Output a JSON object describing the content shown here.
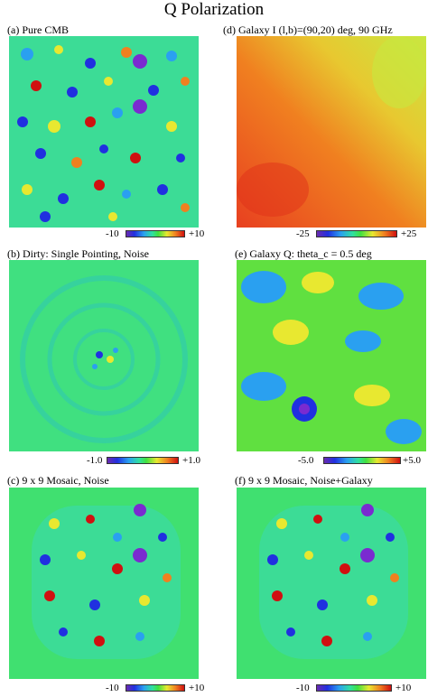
{
  "figure": {
    "title": "Q Polarization"
  },
  "panels": [
    {
      "id": "a",
      "label": "(a) Pure CMB",
      "cbar_min": "-10",
      "cbar_max": "+10"
    },
    {
      "id": "d",
      "label": "(d) Galaxy I (l,b)=(90,20) deg, 90 GHz",
      "cbar_min": "-25",
      "cbar_max": "+25"
    },
    {
      "id": "b",
      "label": "(b) Dirty: Single Pointing, Noise",
      "cbar_min": "-1.0",
      "cbar_max": "+1.0"
    },
    {
      "id": "e",
      "label": "(e) Galaxy Q:  theta_c = 0.5 deg",
      "cbar_min": "-5.0",
      "cbar_max": "+5.0"
    },
    {
      "id": "c",
      "label": "(c) 9 x 9 Mosaic, Noise",
      "cbar_min": "-10",
      "cbar_max": "+10"
    },
    {
      "id": "f",
      "label": "(f) 9 x 9 Mosaic, Noise+Galaxy",
      "cbar_min": "-10",
      "cbar_max": "+10"
    }
  ]
}
